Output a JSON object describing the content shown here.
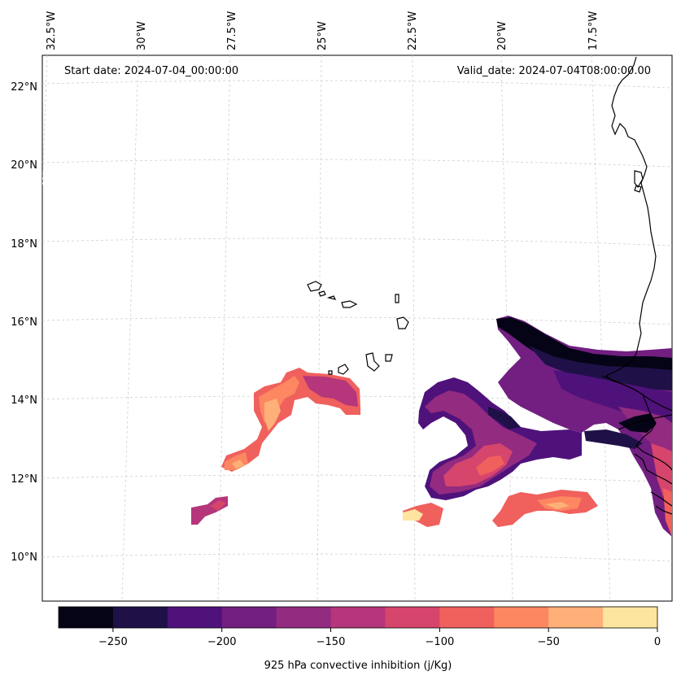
{
  "header": {
    "start_date": "Start date: 2024-07-04_00:00:00",
    "valid_date": "Valid_date: 2024-07-04T08:00:00.00"
  },
  "longitude_labels": [
    "32.5°W",
    "30°W",
    "27.5°W",
    "25°W",
    "22.5°W",
    "20°W",
    "17.5°W"
  ],
  "latitude_labels": [
    "22°N",
    "20°N",
    "18°N",
    "16°N",
    "14°N",
    "12°N",
    "10°N"
  ],
  "colorbar": {
    "title": "925 hPa convective inhibition (j/Kg)",
    "tick_labels": [
      "−250",
      "−200",
      "−150",
      "−100",
      "−50",
      "0"
    ],
    "min": -275,
    "max": 0,
    "colors": [
      "#050416",
      "#1f1147",
      "#4f127b",
      "#721f81",
      "#932b80",
      "#b5367a",
      "#d6456c",
      "#f0605d",
      "#fc8761",
      "#feb078",
      "#fde59f"
    ]
  },
  "map": {
    "projection": "lambert-conformal",
    "lon_range": [
      -33,
      -15
    ],
    "lat_range": [
      9,
      22.7
    ],
    "gridlines": true,
    "coastline_color": "#000000"
  },
  "chart_data": {
    "type": "heatmap",
    "variable": "925 hPa convective inhibition",
    "units": "j/Kg",
    "levels": [
      -275,
      -250,
      -225,
      -200,
      -175,
      -150,
      -125,
      -100,
      -75,
      -50,
      -25,
      0
    ],
    "regions": [
      {
        "area": "offshore west of Senegal/Gambia near 15-16°N, 20-15°W",
        "min_value": -275,
        "max_value": -175
      },
      {
        "area": "south of Cape Verde near 11-14°N, 23-20°W",
        "min_value": -225,
        "max_value": -50
      },
      {
        "area": "southwest of Cape Verde near 11-15°N, 29-25°W",
        "min_value": -175,
        "max_value": -25
      },
      {
        "area": "near 11°N, 22-17°W",
        "min_value": -125,
        "max_value": -25
      }
    ]
  }
}
